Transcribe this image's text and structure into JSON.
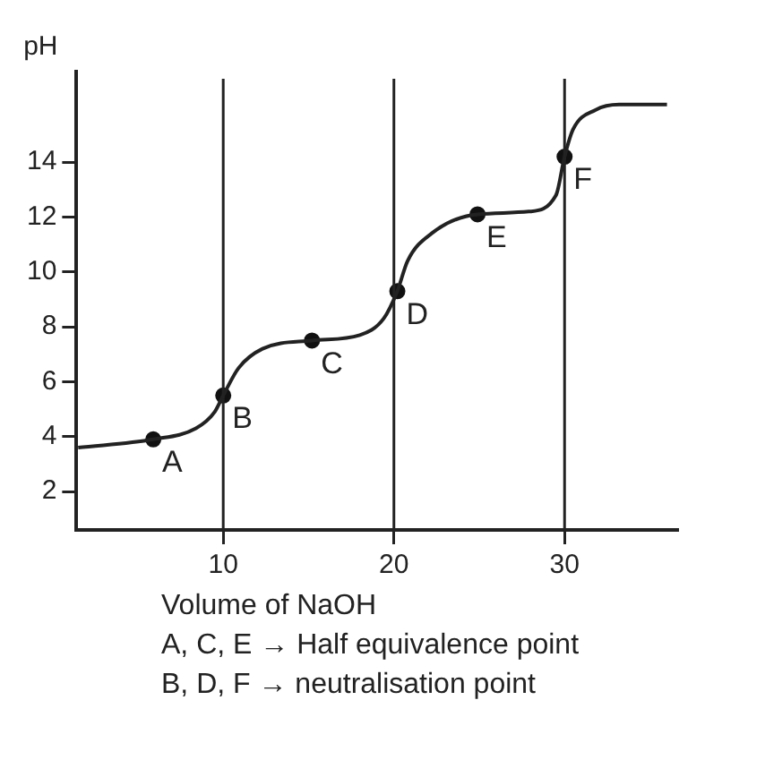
{
  "chart_data": {
    "type": "line",
    "xlabel": "Volume of NaOH",
    "ylabel": "pH",
    "xlim": [
      1.4,
      36.6
    ],
    "ylim": [
      0.6,
      17.3
    ],
    "xticks": [
      10,
      20,
      30
    ],
    "yticks": [
      2,
      4,
      6,
      8,
      10,
      12,
      14
    ],
    "grid": false,
    "legend": false,
    "series": [
      {
        "color": "#222222",
        "marker": "none",
        "x": [
          1.5,
          5.9,
          8.4,
          9.5,
          10,
          10.9,
          12.3,
          15.2,
          18,
          19.4,
          20.2,
          20.8,
          22.2,
          24.9,
          27.9,
          29.5,
          30,
          30.5,
          31.8,
          33.2,
          36
        ],
        "values": [
          3.6,
          3.9,
          4.3,
          4.9,
          5.5,
          6.5,
          7.2,
          7.5,
          7.7,
          8.3,
          9.3,
          10.4,
          11.4,
          12.1,
          12.2,
          12.8,
          14.2,
          15.2,
          15.9,
          16.1,
          16.1
        ]
      },
      {
        "type": "scatter",
        "color": "#111111",
        "marker": "circle",
        "x": [
          5.9,
          10,
          15.2,
          20.2,
          24.9,
          30
        ],
        "values": [
          3.9,
          5.5,
          7.5,
          9.3,
          12.1,
          14.2
        ]
      }
    ],
    "ref_lines": [
      {
        "axis": "x",
        "value": 10,
        "color": "#222222"
      },
      {
        "axis": "x",
        "value": 20,
        "color": "#222222"
      },
      {
        "axis": "x",
        "value": 30,
        "color": "#222222"
      }
    ],
    "annotations": [
      {
        "text": "A",
        "x": 5.9,
        "y": 3.9
      },
      {
        "text": "B",
        "x": 10,
        "y": 5.5
      },
      {
        "text": "C",
        "x": 15.2,
        "y": 7.5
      },
      {
        "text": "D",
        "x": 20.2,
        "y": 9.3
      },
      {
        "text": "E",
        "x": 24.9,
        "y": 12.1
      },
      {
        "text": "F",
        "x": 30,
        "y": 14.2
      },
      "A, C, E → Half equivalence point",
      "B, D, F → neutralisation point"
    ]
  }
}
